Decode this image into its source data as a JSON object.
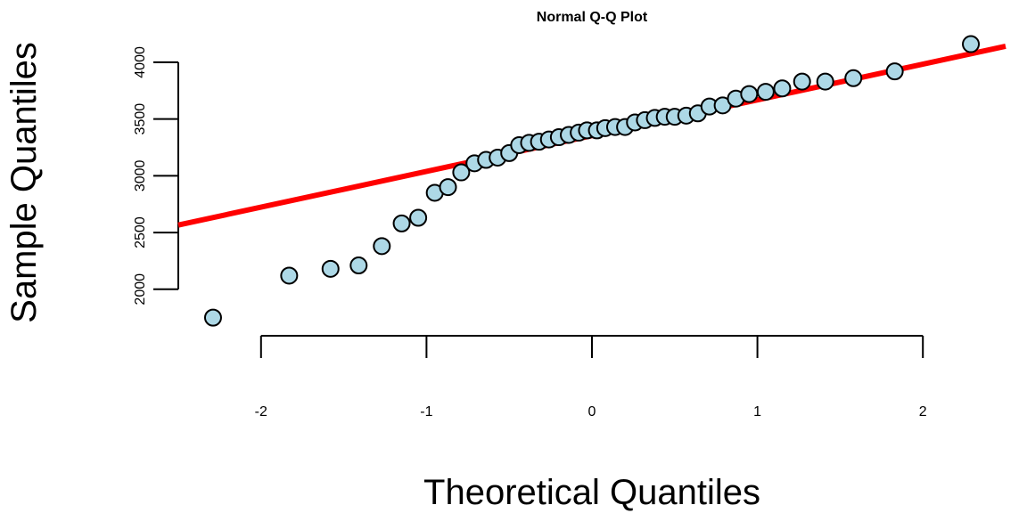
{
  "chart_data": {
    "type": "scatter",
    "title": "Normal Q-Q Plot",
    "xlabel": "Theoretical Quantiles",
    "ylabel": "Sample Quantiles",
    "xlim": [
      -2.5,
      2.5
    ],
    "ylim": [
      1700,
      4180
    ],
    "x_ticks": [
      -2,
      -1,
      0,
      1,
      2
    ],
    "x_tick_labels": [
      "-2",
      "-1",
      "0",
      "1",
      "2"
    ],
    "y_ticks": [
      2000,
      2500,
      3000,
      3500,
      4000
    ],
    "y_tick_labels": [
      "2000",
      "2500",
      "3000",
      "3500",
      "4000"
    ],
    "grid": false,
    "point_fill": "#ADD8E6",
    "point_stroke": "#000000",
    "line_color": "#FF0000",
    "reference_line": {
      "x": [
        -2.5,
        2.5
      ],
      "y": [
        2566,
        4141
      ]
    },
    "series": [
      {
        "x": [
          -2.29,
          -1.83,
          -1.58,
          -1.41,
          -1.27,
          -1.15,
          -1.05,
          -0.95,
          -0.87,
          -0.79,
          -0.71,
          -0.64,
          -0.57,
          -0.5,
          -0.44,
          -0.38,
          -0.32,
          -0.26,
          -0.2,
          -0.14,
          -0.08,
          -0.03,
          0.03,
          0.08,
          0.14,
          0.2,
          0.26,
          0.32,
          0.38,
          0.44,
          0.5,
          0.57,
          0.64,
          0.71,
          0.79,
          0.87,
          0.95,
          1.05,
          1.15,
          1.27,
          1.41,
          1.58,
          1.83,
          2.29
        ],
        "y": [
          1750,
          2120,
          2180,
          2210,
          2380,
          2580,
          2630,
          2850,
          2900,
          3030,
          3110,
          3140,
          3160,
          3200,
          3270,
          3290,
          3300,
          3320,
          3340,
          3360,
          3380,
          3400,
          3400,
          3420,
          3430,
          3430,
          3470,
          3490,
          3510,
          3520,
          3520,
          3530,
          3550,
          3610,
          3620,
          3680,
          3720,
          3740,
          3770,
          3830,
          3830,
          3860,
          3920,
          4160
        ]
      }
    ]
  }
}
